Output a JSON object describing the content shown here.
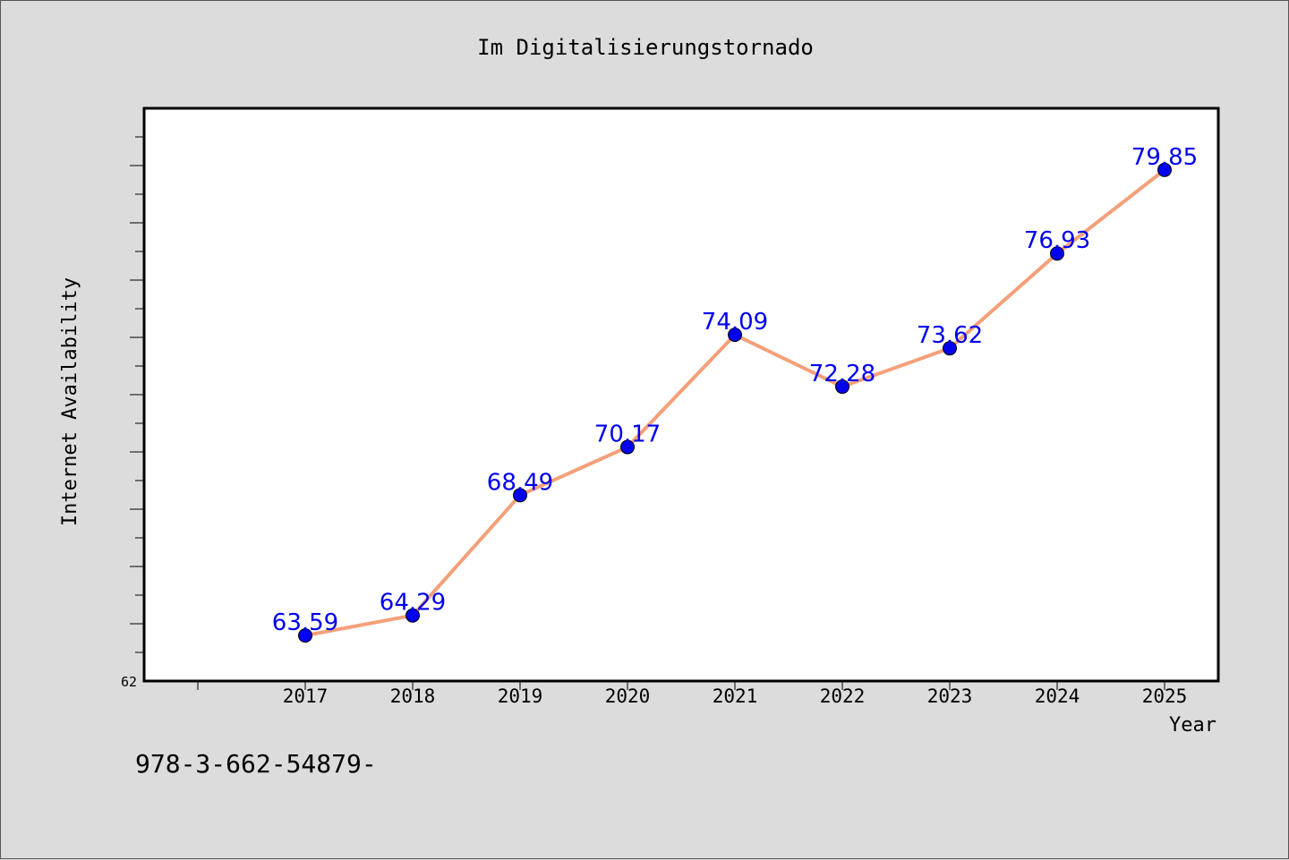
{
  "chart_data": {
    "type": "line",
    "title": "Im Digitalisierungstornado",
    "xlabel": "Year",
    "ylabel": "Internet Availability",
    "x": [
      "2017",
      "2018",
      "2019",
      "2020",
      "2021",
      "2022",
      "2023",
      "2024",
      "2025"
    ],
    "series": [
      {
        "values": [
          63.59,
          64.29,
          68.49,
          70.17,
          74.09,
          72.28,
          73.62,
          76.93,
          79.85
        ],
        "labels": [
          "63.59",
          "64.29",
          "68.49",
          "70.17",
          "74.09",
          "72.28",
          "73.62",
          "76.93",
          "79.85"
        ]
      }
    ],
    "y_tick_labels": [
      "62"
    ],
    "ylim": [
      62,
      82
    ],
    "grid": false,
    "line_color": "#f4a07a",
    "marker_color": "#0000ee",
    "label_color": "#0000ee"
  },
  "footer_code": "978-3-662-54879-"
}
